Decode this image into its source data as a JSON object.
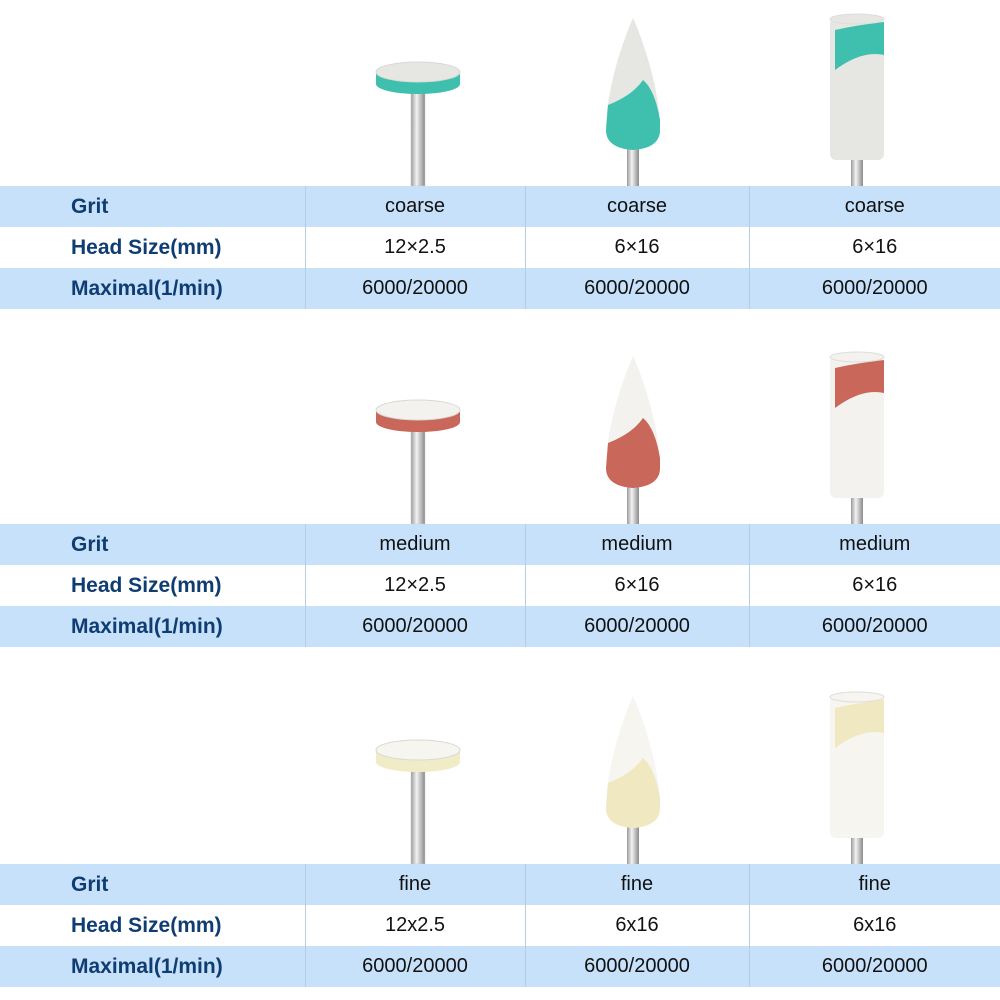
{
  "row_labels": {
    "grit": "Grit",
    "head_size": "Head Size(mm)",
    "maximal": "Maximal(1/min)"
  },
  "sections": [
    {
      "products": [
        {
          "shape": "disc",
          "grit": "coarse",
          "head_size": "12×2.5",
          "maximal": "6000/20000",
          "colors": {
            "top": "#e6e6e3",
            "body": "#3fbfae"
          }
        },
        {
          "shape": "flame",
          "grit": "coarse",
          "head_size": "6×16",
          "maximal": "6000/20000",
          "colors": {
            "top": "#e6e6e3",
            "body": "#3fbfae"
          }
        },
        {
          "shape": "cylinder",
          "grit": "coarse",
          "head_size": "6×16",
          "maximal": "6000/20000",
          "colors": {
            "top": "#e6e6e3",
            "body": "#3fbfae"
          }
        }
      ]
    },
    {
      "products": [
        {
          "shape": "disc",
          "grit": "medium",
          "head_size": "12×2.5",
          "maximal": "6000/20000",
          "colors": {
            "top": "#f4f2ee",
            "body": "#c9675a"
          }
        },
        {
          "shape": "flame",
          "grit": "medium",
          "head_size": "6×16",
          "maximal": "6000/20000",
          "colors": {
            "top": "#f4f2ee",
            "body": "#c9675a"
          }
        },
        {
          "shape": "cylinder",
          "grit": "medium",
          "head_size": "6×16",
          "maximal": "6000/20000",
          "colors": {
            "top": "#f4f2ee",
            "body": "#c9675a"
          }
        }
      ]
    },
    {
      "products": [
        {
          "shape": "disc",
          "grit": "fine",
          "head_size": "12x2.5",
          "maximal": "6000/20000",
          "colors": {
            "top": "#f6f5f0",
            "body": "#f1ecc8"
          }
        },
        {
          "shape": "flame",
          "grit": "fine",
          "head_size": "6x16",
          "maximal": "6000/20000",
          "colors": {
            "top": "#f6f5f0",
            "body": "#efe8c0"
          }
        },
        {
          "shape": "cylinder",
          "grit": "fine",
          "head_size": "6x16",
          "maximal": "6000/20000",
          "colors": {
            "top": "#f6f5f0",
            "body": "#efe8c0"
          }
        }
      ]
    }
  ],
  "colors": {
    "row_blue": "#c6e1f9",
    "label_text": "#0f3d73",
    "shaft": "#c8c8c8"
  }
}
